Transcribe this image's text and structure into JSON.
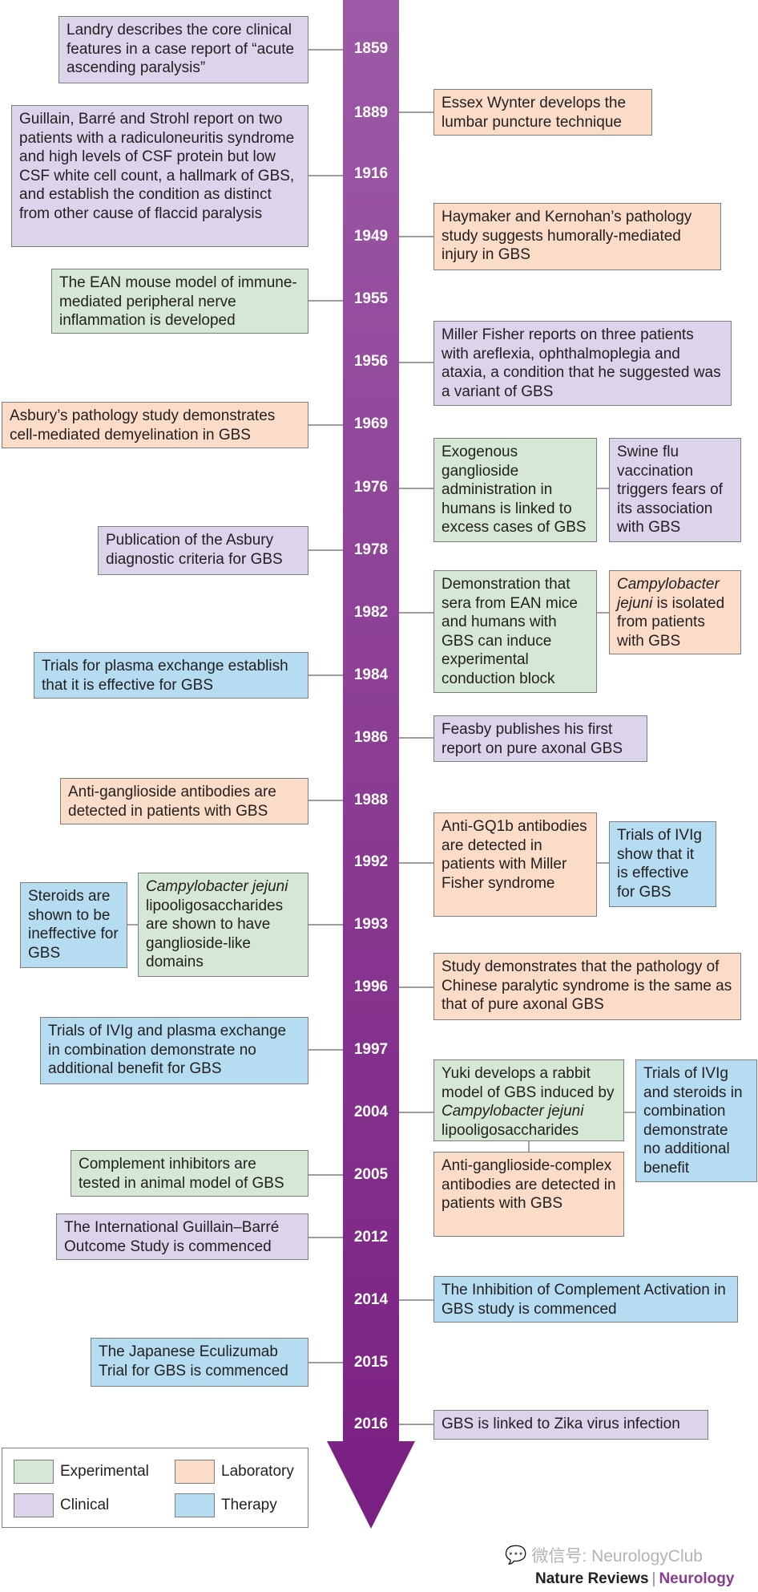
{
  "timeline": {
    "years": [
      "1859",
      "1889",
      "1916",
      "1949",
      "1955",
      "1956",
      "1969",
      "1976",
      "1978",
      "1982",
      "1984",
      "1986",
      "1988",
      "1992",
      "1993",
      "1996",
      "1997",
      "2004",
      "2005",
      "2012",
      "2014",
      "2015",
      "2016"
    ],
    "events": [
      {
        "id": "landry",
        "category": "clinical",
        "text": "Landry describes the core clinical features in a case report of “acute ascending paralysis”"
      },
      {
        "id": "wynter",
        "category": "laboratory",
        "text": "Essex Wynter develops the lumbar puncture technique"
      },
      {
        "id": "guillain",
        "category": "clinical",
        "text": "Guillain, Barré and Strohl report on two patients with a radiculoneuritis syndrome and high levels of CSF protein but low CSF white cell count, a hallmark of GBS, and establish the condition as distinct from other cause of flaccid paralysis"
      },
      {
        "id": "haymaker",
        "category": "laboratory",
        "text": "Haymaker and Kernohan’s pathology study suggests humorally-mediated injury in GBS"
      },
      {
        "id": "ean",
        "category": "experimental",
        "text": "The EAN mouse model of immune-mediated peripheral nerve inflammation is developed"
      },
      {
        "id": "fisher",
        "category": "clinical",
        "text": "Miller Fisher reports on three patients with areflexia, ophthalmoplegia and ataxia, a condition that he suggested was a variant of GBS"
      },
      {
        "id": "asbury_path",
        "category": "laboratory",
        "text": "Asbury’s pathology study demonstrates cell-mediated demyelination in GBS"
      },
      {
        "id": "ganglioside_admin",
        "category": "experimental",
        "text": "Exogenous ganglioside administration in humans is linked to excess cases of GBS"
      },
      {
        "id": "swine_flu",
        "category": "clinical",
        "text": "Swine flu vaccination triggers fears of its association with GBS"
      },
      {
        "id": "asbury_criteria",
        "category": "clinical",
        "text": "Publication of the Asbury diagnostic criteria for GBS"
      },
      {
        "id": "conduction_block",
        "category": "experimental",
        "text": "Demonstration that sera from EAN mice and humans with GBS can induce experimental conduction block"
      },
      {
        "id": "campylobacter_isolated",
        "category": "laboratory",
        "italic": "Campylobacter jejuni",
        "text": " is isolated from patients with GBS"
      },
      {
        "id": "plasma_exchange",
        "category": "therapy",
        "text": "Trials for plasma exchange establish that it is effective for GBS"
      },
      {
        "id": "feasby",
        "category": "clinical",
        "text": "Feasby publishes his first report on pure axonal GBS"
      },
      {
        "id": "anti_ganglioside",
        "category": "laboratory",
        "text": "Anti-ganglioside antibodies are detected in patients with GBS"
      },
      {
        "id": "gq1b",
        "category": "laboratory",
        "text": "Anti-GQ1b antibodies are detected in patients with Miller Fisher syndrome"
      },
      {
        "id": "ivig",
        "category": "therapy",
        "text": "Trials of IVIg show that it is effective for GBS"
      },
      {
        "id": "steroids",
        "category": "therapy",
        "text": "Steroids are shown to be ineffective for GBS"
      },
      {
        "id": "los",
        "category": "experimental",
        "italic": "Campylobacter jejuni",
        "text": " lipooligosaccharides are shown to have ganglioside-like domains"
      },
      {
        "id": "chinese",
        "category": "laboratory",
        "text": "Study demonstrates that the pathology of Chinese paralytic syndrome is the same as that of pure axonal GBS"
      },
      {
        "id": "ivig_pe",
        "category": "therapy",
        "text": "Trials of IVIg and plasma exchange in combination demonstrate no additional benefit for GBS"
      },
      {
        "id": "yuki",
        "category": "experimental",
        "pre": "Yuki develops a rabbit model of GBS induced by ",
        "italic": "Campylobacter jejuni",
        "text": " lipooligosaccharides"
      },
      {
        "id": "ivig_steroids",
        "category": "therapy",
        "text": "Trials of IVIg and steroids in combination demonstrate no additional benefit"
      },
      {
        "id": "complex_ab",
        "category": "laboratory",
        "text": "Anti-ganglioside-complex antibodies are detected in patients with GBS"
      },
      {
        "id": "complement",
        "category": "experimental",
        "text": "Complement inhibitors are tested in animal model of GBS"
      },
      {
        "id": "igos",
        "category": "clinical",
        "text": "The International Guillain–Barré Outcome Study is commenced"
      },
      {
        "id": "icares",
        "category": "therapy",
        "text": "The Inhibition of Complement Activation in GBS study is commenced"
      },
      {
        "id": "eculizumab",
        "category": "therapy",
        "text": "The Japanese Eculizumab Trial for GBS is commenced"
      },
      {
        "id": "zika",
        "category": "clinical",
        "text": "GBS is linked to Zika virus infection"
      }
    ]
  },
  "legend": {
    "experimental": "Experimental",
    "laboratory": "Laboratory",
    "clinical": "Clinical",
    "therapy": "Therapy"
  },
  "colors": {
    "experimental": "#d5e8d5",
    "laboratory": "#fadcc8",
    "clinical": "#dcd4eb",
    "therapy": "#b6dcf1",
    "arrow_top": "#9c5aa6",
    "arrow_bottom": "#7a1f82"
  },
  "watermark": {
    "icon": "wechat-icon",
    "text": "微信号: NeurologyClub"
  },
  "credit": {
    "journal_group": "Nature Reviews",
    "separator": "|",
    "journal": "Neurology"
  }
}
